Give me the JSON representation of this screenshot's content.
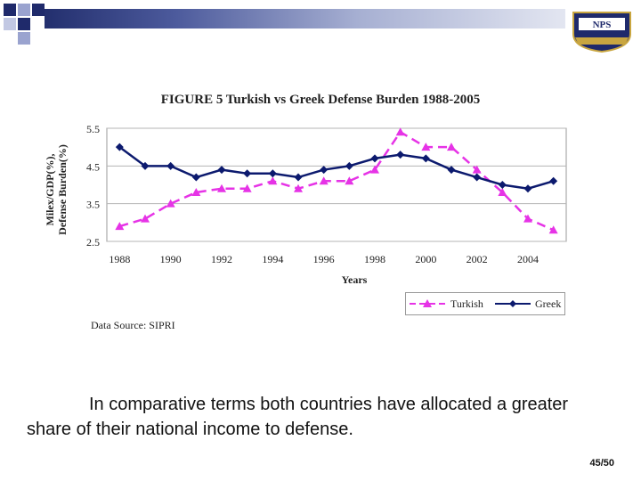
{
  "slide": {
    "body_text": "In comparative terms both countries have allocated a greater share of their national income to defense.",
    "page_number": "45/50",
    "logo_text": "NPS",
    "accent_color": "#1f2a6b"
  },
  "chart_data": {
    "type": "line",
    "title": "FIGURE 5 Turkish vs Greek Defense Burden 1988-2005",
    "xlabel": "Years",
    "ylabel": "Milex/GDP(%), Defense Burden(%)",
    "ylabel_lines": [
      "Milex/GDP(%),",
      "Defense Burden(%)"
    ],
    "source": "Data Source: SIPRI",
    "x": [
      1988,
      1989,
      1990,
      1991,
      1992,
      1993,
      1994,
      1995,
      1996,
      1997,
      1998,
      1999,
      2000,
      2001,
      2002,
      2003,
      2004,
      2005
    ],
    "xticks": [
      1988,
      1990,
      1992,
      1994,
      1996,
      1998,
      2000,
      2002,
      2004
    ],
    "xlim": [
      1987.5,
      2005.5
    ],
    "yticks": [
      2.5,
      3.5,
      4.5,
      5.5
    ],
    "ylim": [
      2.5,
      5.5
    ],
    "grid": true,
    "legend_position": "bottom-right",
    "series": [
      {
        "name": "Turkish",
        "color": "#e633e6",
        "marker": "triangle",
        "style": "dashed",
        "values": [
          2.9,
          3.1,
          3.5,
          3.8,
          3.9,
          3.9,
          4.1,
          3.9,
          4.1,
          4.1,
          4.4,
          5.4,
          5.0,
          5.0,
          4.4,
          3.8,
          3.1,
          2.8
        ]
      },
      {
        "name": "Greek",
        "color": "#0c1a6e",
        "marker": "diamond",
        "style": "solid",
        "values": [
          5.0,
          4.5,
          4.5,
          4.2,
          4.4,
          4.3,
          4.3,
          4.2,
          4.4,
          4.5,
          4.7,
          4.8,
          4.7,
          4.4,
          4.2,
          4.0,
          3.9,
          4.1
        ]
      }
    ]
  }
}
